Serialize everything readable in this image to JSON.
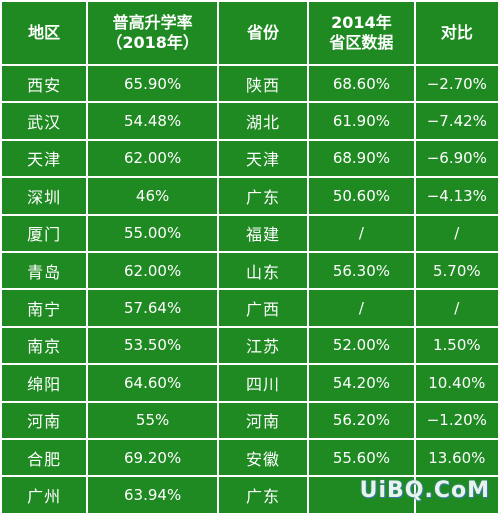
{
  "table": {
    "headers": {
      "region": "地区",
      "rate_line1": "普高升学率",
      "rate_line2": "（2018年）",
      "province": "省份",
      "data_line1": "2014年",
      "data_line2": "省区数据",
      "compare": "对比"
    },
    "rows": [
      {
        "city": "西安",
        "rate": "65.90%",
        "province": "陕西",
        "prov_rate": "68.60%",
        "diff": "−2.70%"
      },
      {
        "city": "武汉",
        "rate": "54.48%",
        "province": "湖北",
        "prov_rate": "61.90%",
        "diff": "−7.42%"
      },
      {
        "city": "天津",
        "rate": "62.00%",
        "province": "天津",
        "prov_rate": "68.90%",
        "diff": "−6.90%"
      },
      {
        "city": "深圳",
        "rate": "46%",
        "province": "广东",
        "prov_rate": "50.60%",
        "diff": "−4.13%"
      },
      {
        "city": "厦门",
        "rate": "55.00%",
        "province": "福建",
        "prov_rate": "/",
        "diff": "/"
      },
      {
        "city": "青岛",
        "rate": "62.00%",
        "province": "山东",
        "prov_rate": "56.30%",
        "diff": "5.70%"
      },
      {
        "city": "南宁",
        "rate": "57.64%",
        "province": "广西",
        "prov_rate": "/",
        "diff": "/"
      },
      {
        "city": "南京",
        "rate": "53.50%",
        "province": "江苏",
        "prov_rate": "52.00%",
        "diff": "1.50%"
      },
      {
        "city": "绵阳",
        "rate": "64.60%",
        "province": "四川",
        "prov_rate": "54.20%",
        "diff": "10.40%"
      },
      {
        "city": "河南",
        "rate": "55%",
        "province": "河南",
        "prov_rate": "56.20%",
        "diff": "−1.20%"
      },
      {
        "city": "合肥",
        "rate": "69.20%",
        "province": "安徽",
        "prov_rate": "55.60%",
        "diff": "13.60%"
      },
      {
        "city": "广州",
        "rate": "63.94%",
        "province": "广东",
        "prov_rate": "",
        "diff": ""
      }
    ]
  },
  "watermark": "UiBQ.CoM",
  "colors": {
    "cell_background": "#1f8a22",
    "text": "#ffffff",
    "grid_lines": "#ffffff"
  }
}
